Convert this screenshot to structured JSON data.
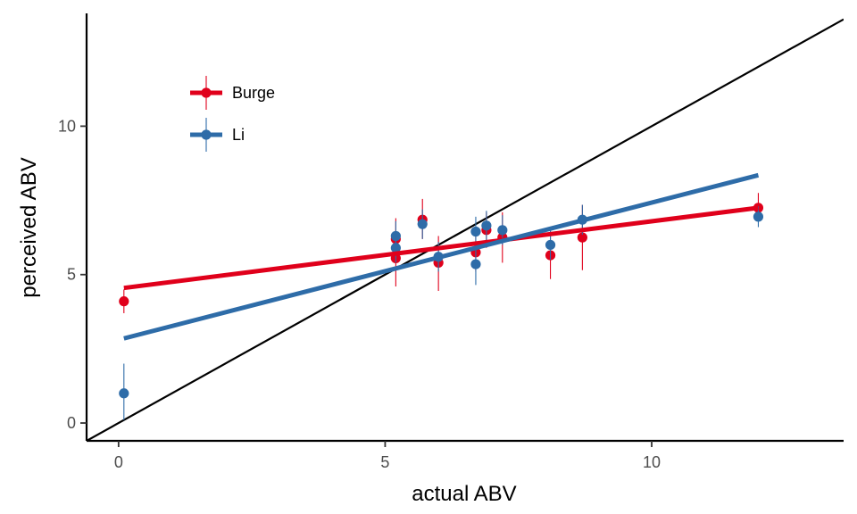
{
  "chart_data": {
    "type": "scatter",
    "xlabel": "actual ABV",
    "ylabel": "perceived ABV",
    "xlim": [
      -0.6,
      13.6
    ],
    "ylim": [
      -0.6,
      13.8
    ],
    "x_ticks": [
      0,
      5,
      10
    ],
    "y_ticks": [
      0,
      5,
      10
    ],
    "grid": false,
    "legend_position": "top-left",
    "identity_line": true,
    "identity_line_color": "#000000",
    "series": [
      {
        "name": "Burge",
        "color": "#e0001b",
        "fit": [
          [
            0.1,
            4.55
          ],
          [
            12.0,
            7.25
          ]
        ],
        "points": [
          {
            "x": 0.1,
            "y": 4.1,
            "lo": 3.7,
            "hi": 4.5
          },
          {
            "x": 5.2,
            "y": 6.2,
            "lo": 5.5,
            "hi": 6.9
          },
          {
            "x": 5.2,
            "y": 5.55,
            "lo": 4.6,
            "hi": 6.5
          },
          {
            "x": 5.7,
            "y": 6.85,
            "lo": 6.2,
            "hi": 7.55
          },
          {
            "x": 6.0,
            "y": 5.4,
            "lo": 4.45,
            "hi": 6.3
          },
          {
            "x": 6.7,
            "y": 5.75,
            "lo": 5.1,
            "hi": 6.4
          },
          {
            "x": 6.9,
            "y": 6.5,
            "lo": 5.9,
            "hi": 7.1
          },
          {
            "x": 7.2,
            "y": 6.25,
            "lo": 5.4,
            "hi": 7.1
          },
          {
            "x": 8.1,
            "y": 5.65,
            "lo": 4.85,
            "hi": 6.5
          },
          {
            "x": 8.7,
            "y": 6.25,
            "lo": 5.15,
            "hi": 7.35
          },
          {
            "x": 12.0,
            "y": 7.25,
            "lo": 6.8,
            "hi": 7.75
          }
        ]
      },
      {
        "name": "Li",
        "color": "#2e6ca8",
        "fit": [
          [
            0.1,
            2.85
          ],
          [
            12.0,
            8.35
          ]
        ],
        "points": [
          {
            "x": 0.1,
            "y": 1.0,
            "lo": 0.1,
            "hi": 2.0
          },
          {
            "x": 5.2,
            "y": 6.3,
            "lo": 5.8,
            "hi": 6.8
          },
          {
            "x": 5.2,
            "y": 5.9,
            "lo": 5.4,
            "hi": 6.4
          },
          {
            "x": 5.7,
            "y": 6.7,
            "lo": 6.2,
            "hi": 7.2
          },
          {
            "x": 6.0,
            "y": 5.6,
            "lo": 5.1,
            "hi": 6.1
          },
          {
            "x": 6.7,
            "y": 6.45,
            "lo": 5.95,
            "hi": 6.95
          },
          {
            "x": 6.7,
            "y": 5.35,
            "lo": 4.65,
            "hi": 6.05
          },
          {
            "x": 6.9,
            "y": 6.65,
            "lo": 6.15,
            "hi": 7.15
          },
          {
            "x": 7.2,
            "y": 6.5,
            "lo": 6.0,
            "hi": 7.0
          },
          {
            "x": 8.1,
            "y": 6.0,
            "lo": 5.5,
            "hi": 6.5
          },
          {
            "x": 8.7,
            "y": 6.85,
            "lo": 6.35,
            "hi": 7.35
          },
          {
            "x": 12.0,
            "y": 6.95,
            "lo": 6.6,
            "hi": 7.3
          }
        ]
      }
    ]
  }
}
